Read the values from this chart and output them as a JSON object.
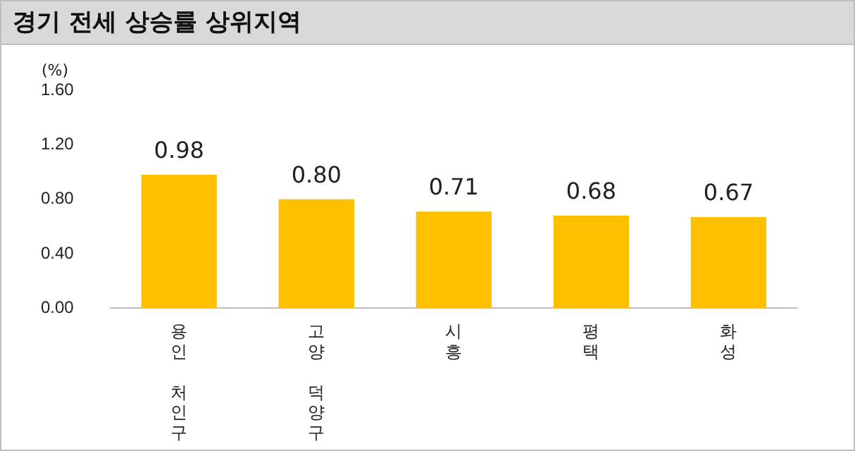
{
  "chart_data": {
    "type": "bar",
    "title": "경기 전세 상승률 상위지역",
    "ylabel": "(%)",
    "categories": [
      "용인 처인구",
      "고양 덕양구",
      "시흥",
      "평택",
      "화성"
    ],
    "values": [
      0.98,
      0.8,
      0.71,
      0.68,
      0.67
    ],
    "color": "#ffc000",
    "ylim": [
      0,
      1.6
    ],
    "yticks": [
      {
        "value": 0,
        "label": "0.00"
      },
      {
        "value": 0.4,
        "label": "0.40"
      },
      {
        "value": 0.8,
        "label": "0.80"
      },
      {
        "value": 1.2,
        "label": "1.20"
      },
      {
        "value": 1.6,
        "label": "1.60"
      }
    ],
    "value_labels": [
      "0.98",
      "0.80",
      "0.71",
      "0.68",
      "0.67"
    ],
    "grid": false,
    "legend": false
  }
}
